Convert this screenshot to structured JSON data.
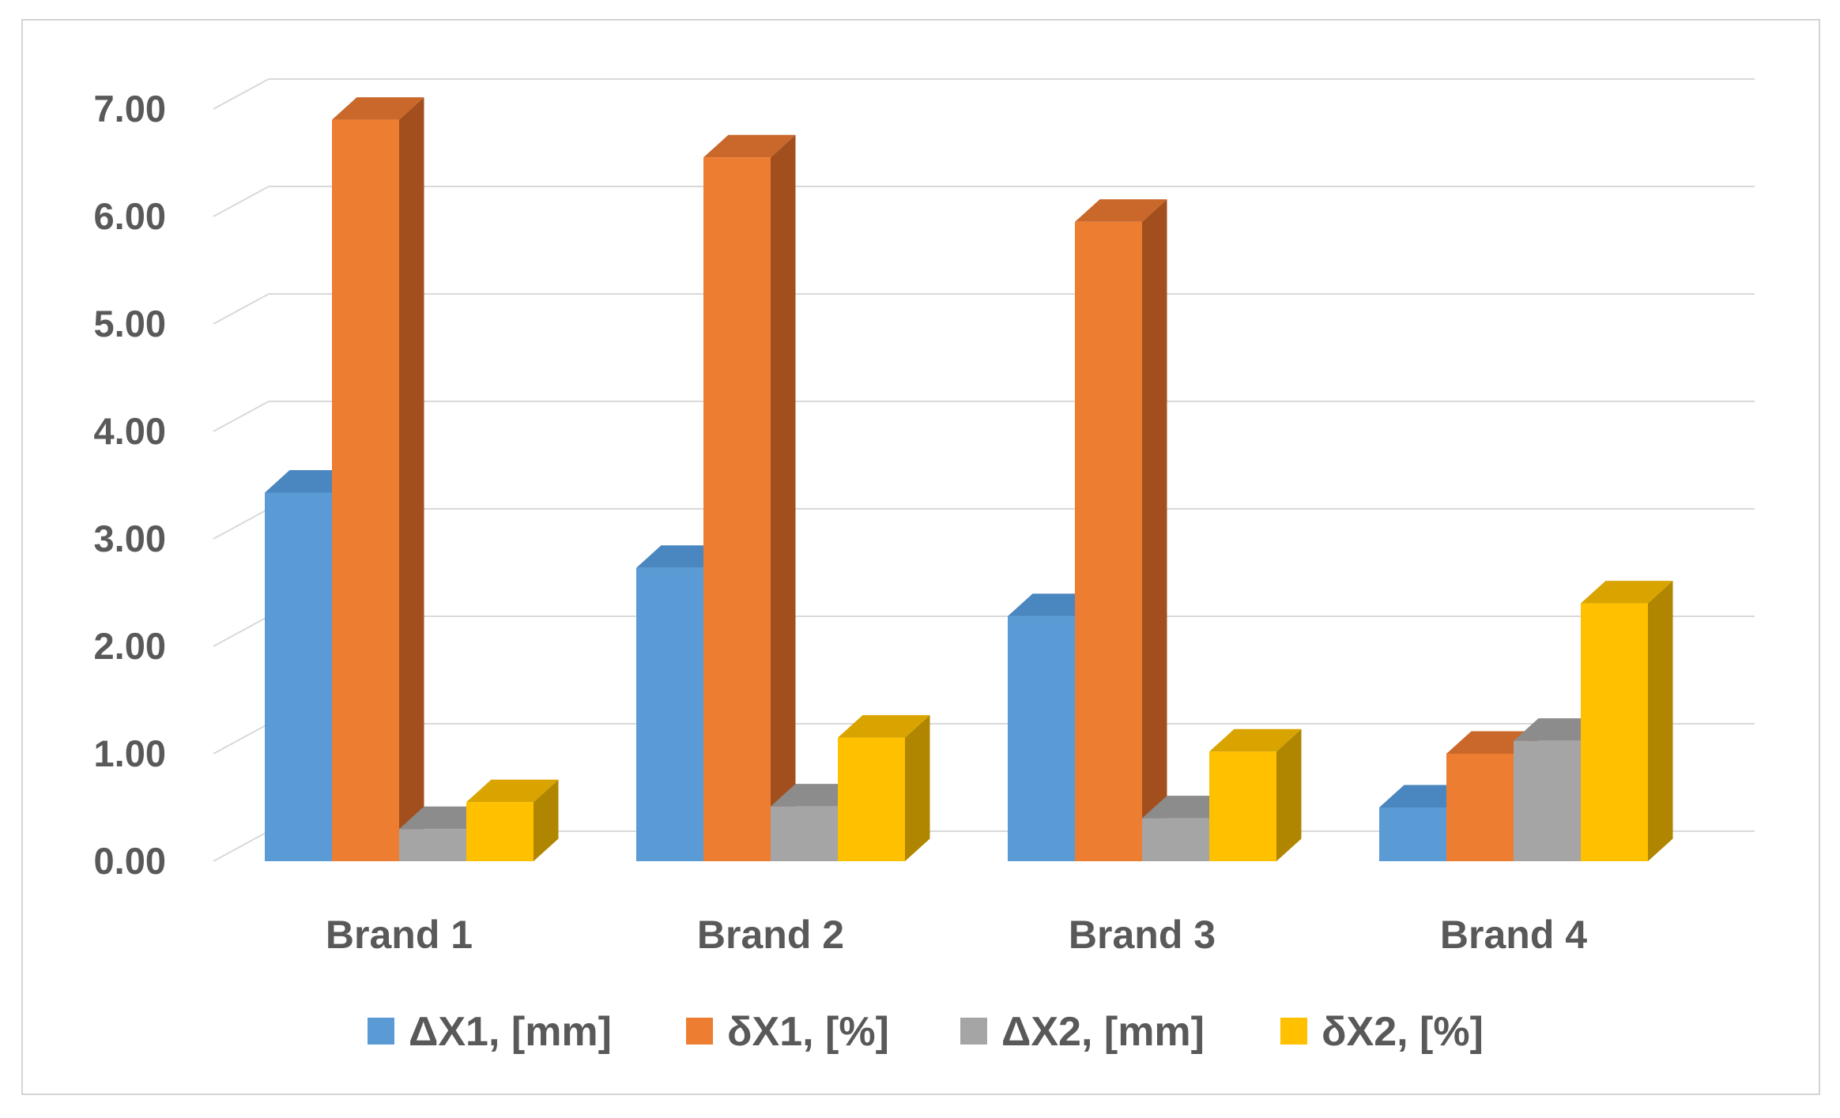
{
  "chart_data": {
    "type": "bar",
    "style": "3d-clustered-column",
    "categories": [
      "Brand 1",
      "Brand 2",
      "Brand 3",
      "Brand 4"
    ],
    "series": [
      {
        "name": "ΔX1, [mm]",
        "values": [
          3.43,
          2.73,
          2.28,
          0.5
        ],
        "color": "#5b9bd5",
        "side_color": "#41719c",
        "top_color": "#4a86bf"
      },
      {
        "name": "δX1, [%]",
        "values": [
          6.9,
          6.55,
          5.95,
          1.0
        ],
        "color": "#ed7d31",
        "side_color": "#a24f1d",
        "top_color": "#c9682a"
      },
      {
        "name": "ΔX2, [mm]",
        "values": [
          0.3,
          0.51,
          0.4,
          1.12
        ],
        "color": "#a5a5a5",
        "side_color": "#707070",
        "top_color": "#8c8c8c"
      },
      {
        "name": "δX2, [%]",
        "values": [
          0.55,
          1.15,
          1.02,
          2.4
        ],
        "color": "#ffc000",
        "side_color": "#b08500",
        "top_color": "#d9a400"
      }
    ],
    "y_ticks": [
      "0.00",
      "1.00",
      "2.00",
      "3.00",
      "4.00",
      "5.00",
      "6.00",
      "7.00"
    ],
    "ylim": [
      0,
      7
    ],
    "grid": true,
    "legend_position": "bottom",
    "title": "",
    "xlabel": "",
    "ylabel": ""
  }
}
